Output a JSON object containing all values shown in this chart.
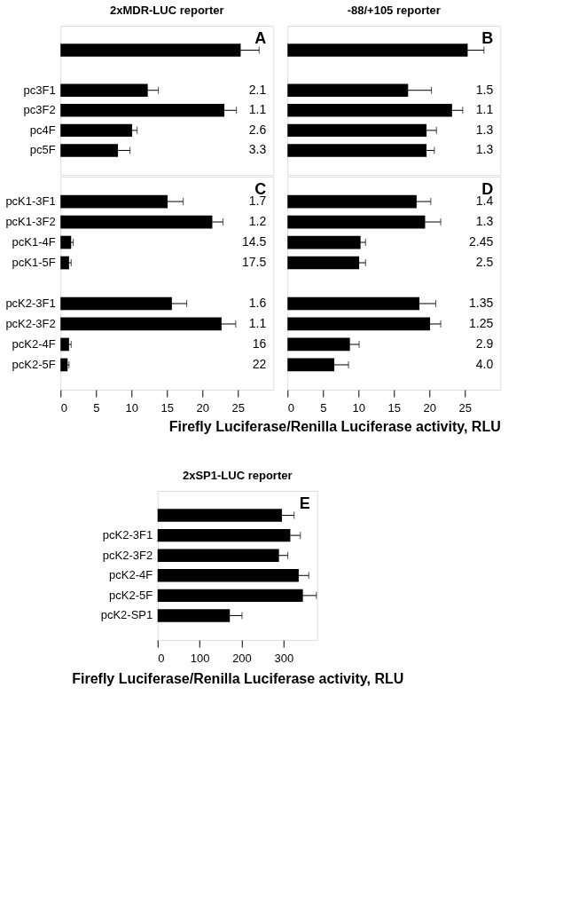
{
  "chart_data": [
    {
      "type": "bar",
      "orientation": "horizontal",
      "title": "2xMDR-LUC reporter",
      "tick_labels": "y",
      "color": "#000000",
      "categories": [
        null,
        null,
        "pc3F1",
        "pc3F2",
        "pc4F",
        "pc5F"
      ],
      "values": [
        25.4,
        null,
        12.3,
        23.1,
        10.1,
        8.1
      ],
      "errors": [
        2.6,
        null,
        1.5,
        1.7,
        0.7,
        1.7
      ],
      "annotations": [
        "A",
        "2.1",
        "1.1",
        "2.6",
        "3.3"
      ],
      "xlim": [
        0,
        30
      ],
      "xticks": [
        0,
        5,
        10,
        15,
        20,
        25
      ]
    },
    {
      "type": "bar",
      "orientation": "horizontal",
      "title": "-88/+105 reporter",
      "tick_labels": false,
      "color": "#000000",
      "categories": [
        null,
        null,
        null,
        null,
        null,
        null
      ],
      "values": [
        25.4,
        null,
        17.0,
        23.2,
        19.6,
        19.6
      ],
      "errors": [
        2.3,
        null,
        3.3,
        1.5,
        1.4,
        1.1
      ],
      "annotations": [
        "B",
        "1.5",
        "1.1",
        "1.3",
        "1.3"
      ],
      "xlim": [
        0,
        30
      ],
      "xticks": [
        0,
        5,
        10,
        15,
        20,
        25
      ]
    },
    {
      "type": "bar",
      "orientation": "horizontal",
      "color": "#000000",
      "xlabel": "Firefly Luciferase/Renilla Luciferase activity, RLU",
      "categories": [
        "pcK1-3F1",
        "pcK1-3F2",
        "pcK1-4F",
        "pcK1-5F",
        null,
        "pcK2-3F1",
        "pcK2-3F2",
        "pcK2-4F",
        "pcK2-5F"
      ],
      "values": [
        15.1,
        21.4,
        1.5,
        1.2,
        null,
        15.7,
        22.7,
        1.2,
        1.0
      ],
      "errors": [
        2.2,
        1.5,
        0.3,
        0.3,
        null,
        2.1,
        2.0,
        0.3,
        0.2
      ],
      "annotations": [
        "C",
        "1.7",
        "1.2",
        "14.5",
        "17.5",
        "1.6",
        "1.1",
        "16",
        "22"
      ],
      "xlim": [
        0,
        30
      ],
      "xticks": [
        0,
        5,
        10,
        15,
        20,
        25
      ]
    },
    {
      "type": "bar",
      "orientation": "horizontal",
      "tick_labels": "x",
      "color": "#000000",
      "categories": [
        null,
        null,
        null,
        null,
        null,
        null,
        null,
        null,
        null
      ],
      "values": [
        18.2,
        19.4,
        10.3,
        10.1,
        null,
        18.6,
        20.1,
        8.8,
        6.6
      ],
      "errors": [
        2.0,
        2.2,
        0.7,
        0.9,
        null,
        2.3,
        1.5,
        1.3,
        2.0
      ],
      "annotations": [
        "D",
        "1.4",
        "1.3",
        "2.45",
        "2.5",
        "1.35",
        "1.25",
        "2.9",
        "4.0"
      ],
      "xlim": [
        0,
        30
      ],
      "xticks": [
        0,
        5,
        10,
        15,
        20,
        25
      ]
    },
    {
      "type": "bar",
      "orientation": "horizontal",
      "title": "2xSP1-LUC reporter",
      "annotations": [
        "E"
      ],
      "color": "#000000",
      "xlabel": "Firefly Luciferase/Renilla Luciferase activity, RLU",
      "categories": [
        null,
        "pcK2-3F1",
        "pcK2-3F2",
        "pcK2-4F",
        "pcK2-5F",
        "pcK2-SP1"
      ],
      "values": [
        296,
        316,
        289,
        336,
        346,
        172
      ],
      "errors": [
        29,
        24,
        21,
        24,
        32,
        29
      ],
      "xlim": [
        0,
        380
      ],
      "xticks": [
        0,
        100,
        200,
        300
      ]
    }
  ]
}
